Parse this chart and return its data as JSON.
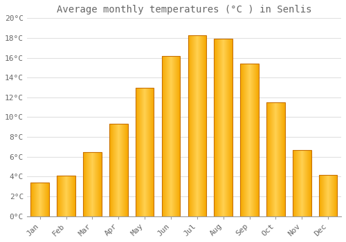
{
  "title": "Average monthly temperatures (°C ) in Senlis",
  "months": [
    "Jan",
    "Feb",
    "Mar",
    "Apr",
    "May",
    "Jun",
    "Jul",
    "Aug",
    "Sep",
    "Oct",
    "Nov",
    "Dec"
  ],
  "values": [
    3.4,
    4.1,
    6.5,
    9.3,
    13.0,
    16.2,
    18.3,
    17.9,
    15.4,
    11.5,
    6.7,
    4.2
  ],
  "bar_color_left": "#F5A800",
  "bar_color_center": "#FFD050",
  "bar_color_right": "#F5A800",
  "bar_edge_color": "#C87000",
  "background_color": "#FFFFFF",
  "plot_bg_color": "#FFFFFF",
  "grid_color": "#E0E0E0",
  "text_color": "#666666",
  "ylim": [
    0,
    20
  ],
  "ytick_step": 2,
  "title_fontsize": 10,
  "tick_fontsize": 8,
  "figsize": [
    5.0,
    3.5
  ],
  "dpi": 100,
  "bar_width": 0.7
}
